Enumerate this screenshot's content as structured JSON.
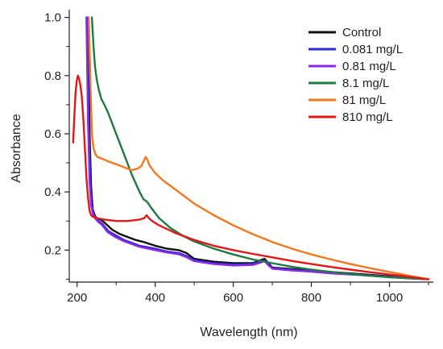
{
  "chart_data": {
    "type": "line",
    "xlabel": "Wavelength (nm)",
    "ylabel": "Absorbance",
    "xlim": [
      180,
      1100
    ],
    "ylim": [
      0.09,
      1.01
    ],
    "xticks": [
      200,
      400,
      600,
      800,
      1000
    ],
    "yticks": [
      0.2,
      0.4,
      0.6,
      0.8,
      1.0
    ],
    "ytick_labels": [
      "0.2",
      "0.4",
      "0.6",
      "0.8",
      "1.0"
    ],
    "grid": false,
    "legend_position": "top-right",
    "series": [
      {
        "name": "Control",
        "color": "#111111",
        "x": [
          228,
          232,
          236,
          240,
          245,
          250,
          260,
          270,
          290,
          310,
          330,
          350,
          370,
          400,
          430,
          460,
          480,
          500,
          550,
          600,
          650,
          670,
          680,
          690,
          700,
          750,
          800,
          850,
          900,
          950,
          1000,
          1050,
          1100
        ],
        "y": [
          1.0,
          0.6,
          0.42,
          0.34,
          0.32,
          0.31,
          0.305,
          0.295,
          0.27,
          0.255,
          0.245,
          0.235,
          0.228,
          0.215,
          0.205,
          0.2,
          0.19,
          0.17,
          0.16,
          0.155,
          0.155,
          0.165,
          0.17,
          0.155,
          0.14,
          0.135,
          0.13,
          0.125,
          0.12,
          0.115,
          0.11,
          0.105,
          0.1
        ]
      },
      {
        "name": "0.081 mg/L",
        "color": "#2a2ad8",
        "x": [
          226,
          230,
          234,
          238,
          243,
          248,
          255,
          265,
          280,
          300,
          320,
          340,
          360,
          380,
          400,
          430,
          460,
          480,
          500,
          550,
          600,
          650,
          670,
          680,
          690,
          700,
          750,
          800,
          850,
          900,
          950,
          1000,
          1050,
          1100
        ],
        "y": [
          1.0,
          0.62,
          0.43,
          0.35,
          0.32,
          0.31,
          0.3,
          0.29,
          0.265,
          0.25,
          0.235,
          0.225,
          0.215,
          0.21,
          0.205,
          0.195,
          0.19,
          0.18,
          0.165,
          0.155,
          0.15,
          0.152,
          0.16,
          0.165,
          0.15,
          0.138,
          0.132,
          0.128,
          0.122,
          0.118,
          0.113,
          0.108,
          0.104,
          0.1
        ]
      },
      {
        "name": "0.81 mg/L",
        "color": "#8a2be2",
        "x": [
          224,
          228,
          232,
          236,
          241,
          246,
          253,
          263,
          278,
          298,
          318,
          338,
          358,
          378,
          400,
          430,
          460,
          480,
          500,
          550,
          600,
          650,
          670,
          680,
          690,
          700,
          750,
          800,
          850,
          900,
          950,
          1000,
          1050,
          1100
        ],
        "y": [
          1.0,
          0.64,
          0.44,
          0.355,
          0.322,
          0.31,
          0.298,
          0.288,
          0.262,
          0.245,
          0.232,
          0.222,
          0.212,
          0.206,
          0.2,
          0.192,
          0.186,
          0.176,
          0.162,
          0.152,
          0.147,
          0.149,
          0.157,
          0.162,
          0.148,
          0.136,
          0.13,
          0.126,
          0.12,
          0.116,
          0.112,
          0.107,
          0.103,
          0.1
        ]
      },
      {
        "name": "8.1 mg/L",
        "color": "#1f7a3f",
        "x": [
          238,
          242,
          246,
          250,
          256,
          262,
          270,
          280,
          300,
          320,
          340,
          360,
          370,
          376,
          380,
          390,
          410,
          440,
          470,
          500,
          550,
          600,
          650,
          700,
          750,
          800,
          850,
          900,
          950,
          1000,
          1050,
          1100
        ],
        "y": [
          1.0,
          0.9,
          0.83,
          0.79,
          0.75,
          0.72,
          0.7,
          0.67,
          0.6,
          0.53,
          0.46,
          0.4,
          0.375,
          0.37,
          0.365,
          0.345,
          0.31,
          0.275,
          0.25,
          0.23,
          0.205,
          0.185,
          0.168,
          0.155,
          0.143,
          0.133,
          0.125,
          0.118,
          0.112,
          0.107,
          0.103,
          0.1
        ]
      },
      {
        "name": "81 mg/L",
        "color": "#f07820",
        "x": [
          230,
          234,
          238,
          242,
          247,
          252,
          262,
          280,
          300,
          320,
          340,
          355,
          365,
          372,
          376,
          380,
          386,
          400,
          420,
          450,
          500,
          550,
          600,
          650,
          700,
          750,
          800,
          850,
          900,
          950,
          1000,
          1050,
          1100
        ],
        "y": [
          1.0,
          0.78,
          0.6,
          0.55,
          0.53,
          0.52,
          0.515,
          0.505,
          0.495,
          0.485,
          0.475,
          0.48,
          0.49,
          0.51,
          0.52,
          0.51,
          0.49,
          0.465,
          0.44,
          0.41,
          0.36,
          0.32,
          0.285,
          0.255,
          0.228,
          0.205,
          0.185,
          0.168,
          0.152,
          0.138,
          0.125,
          0.112,
          0.1
        ]
      },
      {
        "name": "810 mg/L",
        "color": "#e01818",
        "x": [
          190,
          193,
          196,
          199,
          202,
          205,
          208,
          212,
          216,
          220,
          224,
          228,
          232,
          236,
          240,
          250,
          270,
          300,
          330,
          360,
          372,
          378,
          384,
          392,
          410,
          450,
          500,
          550,
          600,
          650,
          700,
          750,
          800,
          850,
          900,
          950,
          1000,
          1050,
          1100
        ],
        "y": [
          0.57,
          0.66,
          0.74,
          0.78,
          0.8,
          0.79,
          0.77,
          0.73,
          0.65,
          0.55,
          0.45,
          0.38,
          0.335,
          0.32,
          0.315,
          0.31,
          0.305,
          0.3,
          0.3,
          0.305,
          0.31,
          0.32,
          0.31,
          0.3,
          0.285,
          0.26,
          0.235,
          0.215,
          0.2,
          0.187,
          0.175,
          0.163,
          0.152,
          0.142,
          0.133,
          0.124,
          0.116,
          0.108,
          0.1
        ]
      }
    ]
  }
}
